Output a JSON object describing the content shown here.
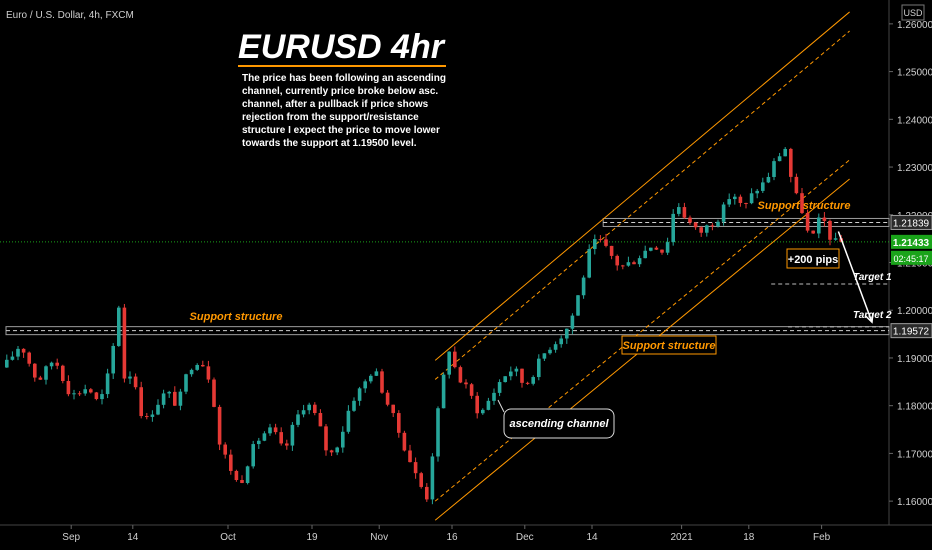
{
  "header": {
    "symbol_line": "Euro / U.S. Dollar, 4h, FXCM",
    "currency": "USD"
  },
  "chart_data": {
    "type": "candlestick",
    "title": "EURUSD 4hr",
    "description": "The price has been following an ascending channel, currently price broke below asc. channel, after a pullback if price shows rejection from the support/resistance structure I expect the price to move lower towards the support at 1.19500 level.",
    "description_lines": [
      "The price has been following an ascending",
      "channel, currently price broke below asc.",
      "channel, after a pullback if price shows",
      "rejection from the support/resistance",
      "structure I expect the price to move lower",
      "towards the support at 1.19500 level."
    ],
    "ylim": [
      1.155,
      1.265
    ],
    "y_ticks": [
      "1.16000",
      "1.17000",
      "1.18000",
      "1.19000",
      "1.20000",
      "1.21000",
      "1.22000",
      "1.23000",
      "1.24000",
      "1.25000",
      "1.26000"
    ],
    "x_ticks": [
      "Sep",
      "14",
      "Oct",
      "19",
      "Nov",
      "16",
      "Dec",
      "14",
      "2021",
      "18",
      "Feb"
    ],
    "price_path": [
      [
        0,
        1.188
      ],
      [
        3,
        1.193
      ],
      [
        6,
        1.185
      ],
      [
        9,
        1.19
      ],
      [
        12,
        1.182
      ],
      [
        15,
        1.184
      ],
      [
        17,
        1.18
      ],
      [
        19,
        1.188
      ],
      [
        20.5,
        1.201
      ],
      [
        21.5,
        1.186
      ],
      [
        23,
        1.187
      ],
      [
        25,
        1.176
      ],
      [
        27,
        1.18
      ],
      [
        29,
        1.183
      ],
      [
        31,
        1.18
      ],
      [
        33,
        1.188
      ],
      [
        35,
        1.19
      ],
      [
        37,
        1.185
      ],
      [
        38.5,
        1.172
      ],
      [
        40,
        1.168
      ],
      [
        42,
        1.163
      ],
      [
        44,
        1.17
      ],
      [
        46,
        1.174
      ],
      [
        48,
        1.175
      ],
      [
        50,
        1.17
      ],
      [
        52,
        1.177
      ],
      [
        54,
        1.181
      ],
      [
        56,
        1.177
      ],
      [
        58,
        1.169
      ],
      [
        60,
        1.173
      ],
      [
        62,
        1.181
      ],
      [
        64,
        1.184
      ],
      [
        66,
        1.188
      ],
      [
        68,
        1.182
      ],
      [
        70,
        1.176
      ],
      [
        72,
        1.17
      ],
      [
        74,
        1.164
      ],
      [
        75.5,
        1.161
      ],
      [
        76.5,
        1.17
      ],
      [
        78,
        1.183
      ],
      [
        79.5,
        1.192
      ],
      [
        81,
        1.186
      ],
      [
        83,
        1.183
      ],
      [
        85,
        1.178
      ],
      [
        87,
        1.182
      ],
      [
        89,
        1.186
      ],
      [
        91,
        1.188
      ],
      [
        93,
        1.184
      ],
      [
        95,
        1.188
      ],
      [
        97,
        1.192
      ],
      [
        99,
        1.194
      ],
      [
        101,
        1.197
      ],
      [
        103,
        1.205
      ],
      [
        104.5,
        1.212
      ],
      [
        106,
        1.215
      ],
      [
        108,
        1.212
      ],
      [
        110,
        1.209
      ],
      [
        112,
        1.21
      ],
      [
        114,
        1.212
      ],
      [
        116,
        1.214
      ],
      [
        118,
        1.212
      ],
      [
        120,
        1.223
      ],
      [
        122,
        1.219
      ],
      [
        124,
        1.216
      ],
      [
        126,
        1.218
      ],
      [
        128,
        1.22
      ],
      [
        130,
        1.225
      ],
      [
        132,
        1.221
      ],
      [
        134,
        1.225
      ],
      [
        136,
        1.227
      ],
      [
        138,
        1.232
      ],
      [
        139.5,
        1.234
      ],
      [
        141,
        1.225
      ],
      [
        142.5,
        1.221
      ],
      [
        144,
        1.214
      ],
      [
        146,
        1.22
      ],
      [
        148,
        1.214
      ],
      [
        149,
        1.2143
      ]
    ],
    "current_price": "1.21433",
    "countdown": "02:45:17",
    "structure_prices": [
      {
        "price": 1.21839,
        "label": "1.21839"
      },
      {
        "price": 1.19572,
        "label": "1.19572"
      }
    ],
    "targets": [
      {
        "price": 1.2055,
        "label": "Target 1"
      },
      {
        "price": 1.1965,
        "label": "Target 2"
      }
    ],
    "channel": {
      "upper": [
        [
          77,
          1.1895
        ],
        [
          151,
          1.2625
        ]
      ],
      "upper_mid": [
        [
          77,
          1.1855
        ],
        [
          151,
          1.2585
        ]
      ],
      "lower_mid": [
        [
          77,
          1.16
        ],
        [
          151,
          1.2315
        ]
      ],
      "lower": [
        [
          77,
          1.156
        ],
        [
          151,
          1.2275
        ]
      ]
    },
    "projection": [
      [
        149,
        1.2165
      ],
      [
        155,
        1.1975
      ]
    ],
    "annotations": {
      "support_left": "Support structure",
      "support_right_top": "Support structure",
      "support_right_bottom": "Support structure",
      "pips": "+200 pips",
      "channel_label": "ascending channel"
    },
    "colors": {
      "up": "#26a69a",
      "down": "#e53935",
      "orange": "#ff9800",
      "current": "#1aa31a",
      "structure_box": "#9e9e9e"
    }
  }
}
